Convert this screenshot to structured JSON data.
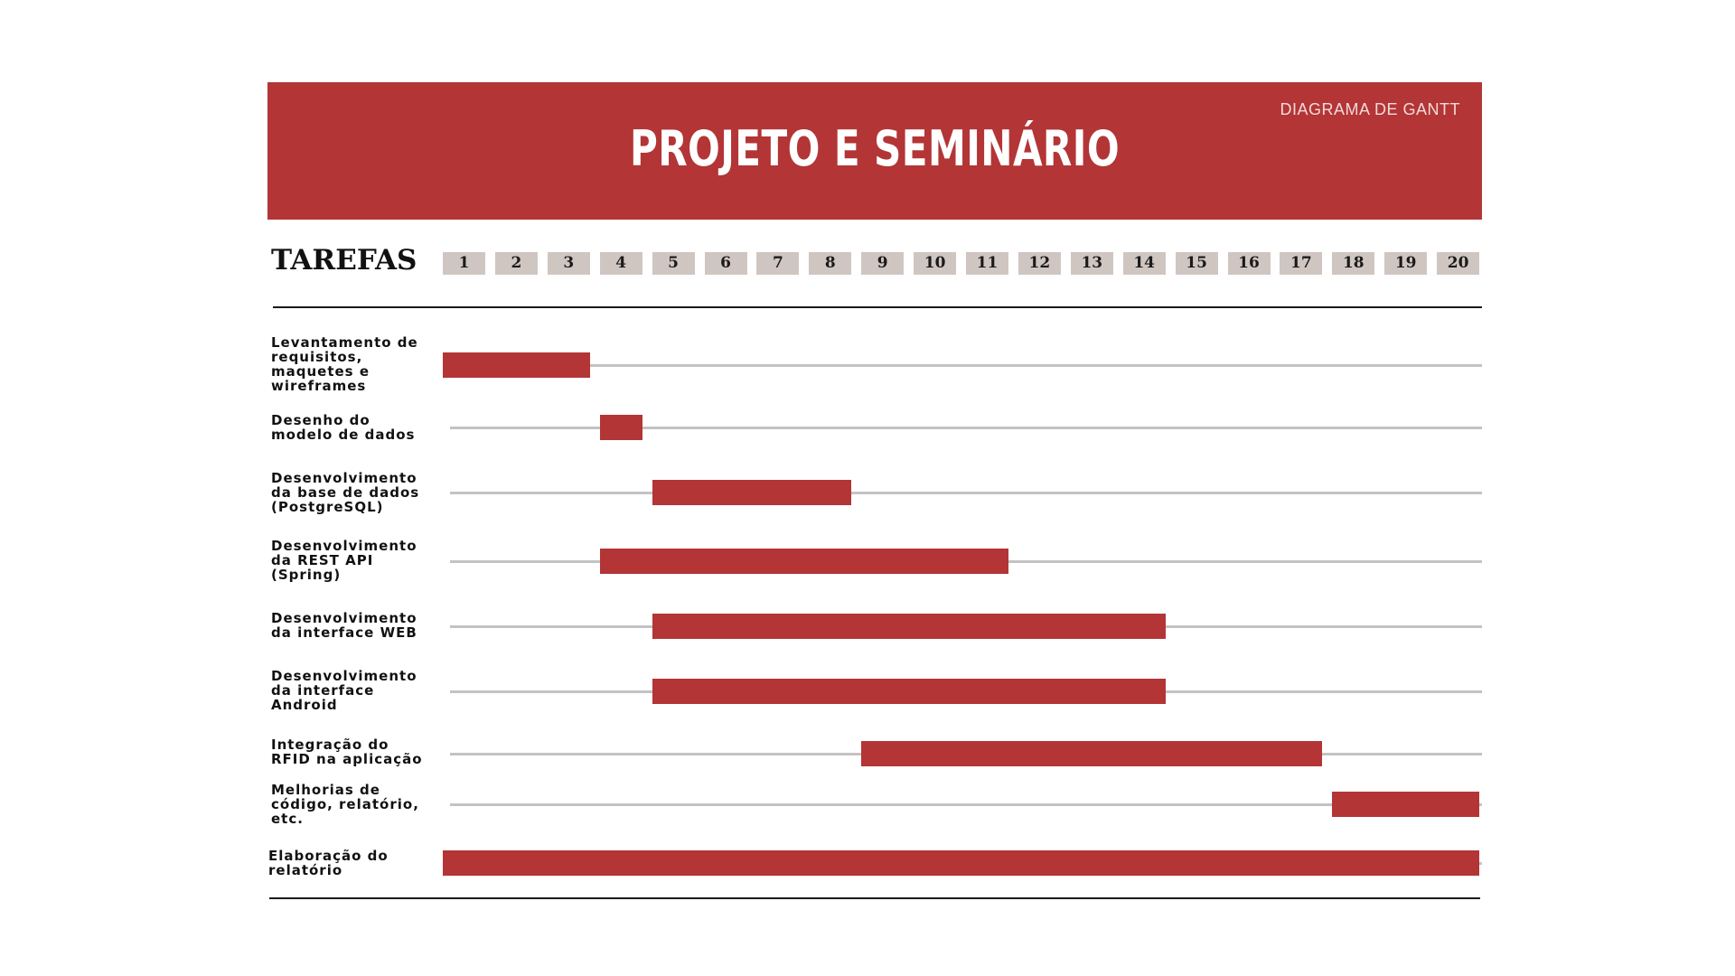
{
  "header": {
    "title": "PROJETO E SEMINÁRIO",
    "subtitle": "DIAGRAMA DE GANTT"
  },
  "colors": {
    "accent": "#b33536",
    "period_cell": "#d0c6c1",
    "track": "#c3c3c3"
  },
  "chart_data": {
    "type": "gantt",
    "tasks_heading": "TAREFAS",
    "periods": [
      "1",
      "2",
      "3",
      "4",
      "5",
      "6",
      "7",
      "8",
      "9",
      "10",
      "11",
      "12",
      "13",
      "14",
      "15",
      "16",
      "17",
      "18",
      "19",
      "20"
    ],
    "tasks": [
      {
        "label": "Levantamento de\nrequisitos,\nmaquetes e\nwireframes",
        "start": 1,
        "end": 3
      },
      {
        "label": "Desenho do\nmodelo de dados",
        "start": 4,
        "end": 4
      },
      {
        "label": "Desenvolvimento\nda base de dados\n(PostgreSQL)",
        "start": 5,
        "end": 8
      },
      {
        "label": "Desenvolvimento\nda REST API\n(Spring)",
        "start": 4,
        "end": 11
      },
      {
        "label": "Desenvolvimento\nda interface WEB",
        "start": 5,
        "end": 14
      },
      {
        "label": "Desenvolvimento\nda interface\nAndroid",
        "start": 5,
        "end": 14
      },
      {
        "label": "Integração do\nRFID na aplicação",
        "start": 9,
        "end": 17
      },
      {
        "label": "Melhorias de\ncódigo, relatório,\netc.",
        "start": 18,
        "end": 20
      },
      {
        "label": "Elaboração do\nrelatório",
        "start": 1,
        "end": 20
      }
    ]
  }
}
